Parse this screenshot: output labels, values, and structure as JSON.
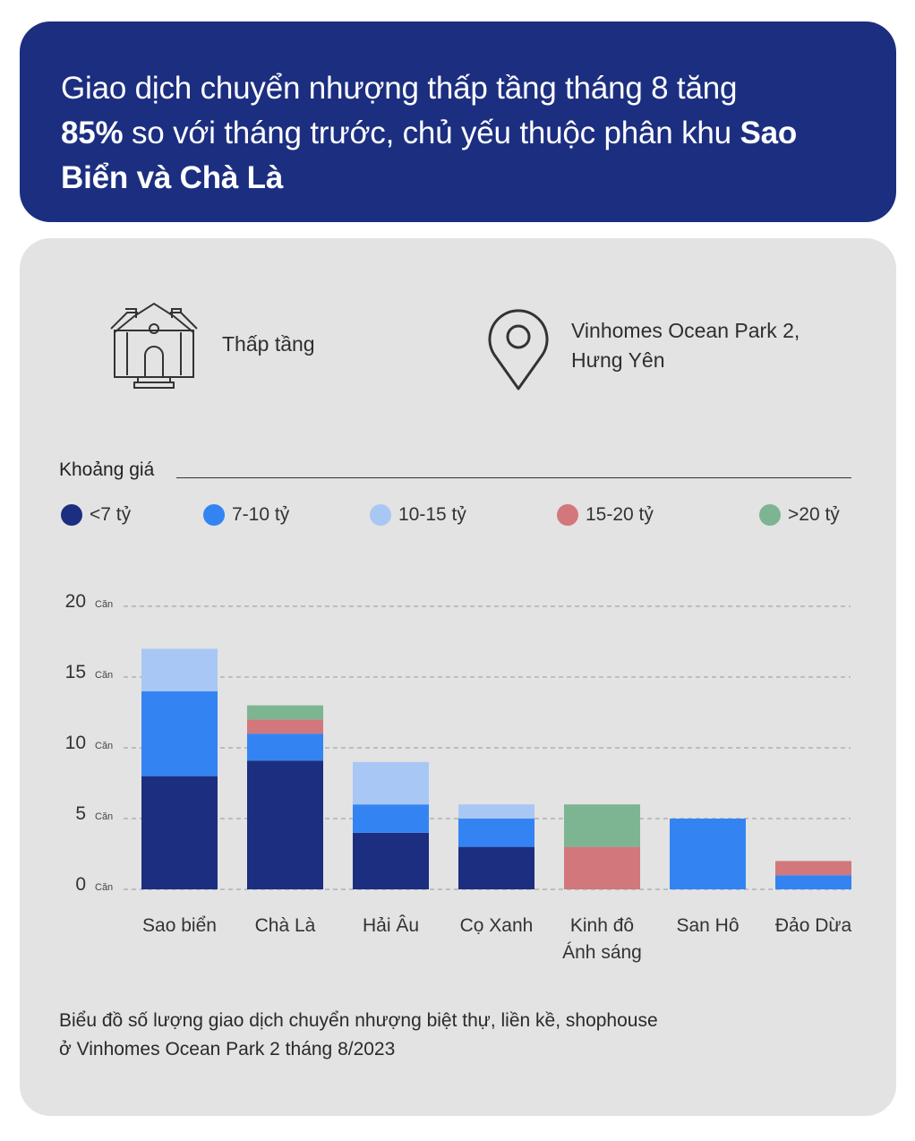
{
  "header": {
    "line1": "Giao dịch chuyển nhượng thấp tầng tháng 8 tăng",
    "bold1": "85%",
    "line2": " so với tháng trước, chủ yếu thuộc phân khu ",
    "bold2a": "Sao",
    "bold2b": "Biển và Chà Là"
  },
  "info": {
    "type_label": "Thấp tầng",
    "location_line1": "Vinhomes Ocean Park 2,",
    "location_line2": "Hưng Yên",
    "type_icon": "house-icon",
    "location_icon": "map-pin-icon"
  },
  "legend": {
    "title": "Khoảng giá",
    "items": [
      {
        "label": "<7 tỷ",
        "color": "#1c2e80"
      },
      {
        "label": "7-10 tỷ",
        "color": "#3384f2"
      },
      {
        "label": "10-15 tỷ",
        "color": "#a9c7f5"
      },
      {
        "label": "15-20 tỷ",
        "color": "#d2777b"
      },
      {
        "label": ">20 tỷ",
        "color": "#7db592"
      }
    ]
  },
  "chart_data": {
    "type": "bar",
    "stacked": true,
    "categories": [
      "Sao biển",
      "Chà Là",
      "Hải Âu",
      "Cọ Xanh",
      "Kinh đô\nÁnh sáng",
      "San Hô",
      "Đảo Dừa"
    ],
    "series": [
      {
        "name": "<7 tỷ",
        "color": "#1c2e80",
        "values": [
          8,
          9.1,
          4,
          3,
          0,
          0,
          0
        ]
      },
      {
        "name": "7-10 tỷ",
        "color": "#3384f2",
        "values": [
          6,
          1.9,
          2,
          2,
          0,
          5,
          1
        ]
      },
      {
        "name": "10-15 tỷ",
        "color": "#a9c7f5",
        "values": [
          3,
          0,
          3,
          1,
          0,
          0,
          0
        ]
      },
      {
        "name": "15-20 tỷ",
        "color": "#d2777b",
        "values": [
          0,
          1,
          0,
          0,
          3,
          0,
          1
        ]
      },
      {
        "name": ">20 tỷ",
        "color": "#7db592",
        "values": [
          0,
          1,
          0,
          0,
          3,
          0,
          0
        ]
      }
    ],
    "yticks": [
      0,
      5,
      10,
      15,
      20
    ],
    "yunit": "Căn",
    "ylim": [
      0,
      20
    ],
    "grid": true
  },
  "caption": {
    "line1": "Biểu đồ số lượng giao dịch chuyển nhượng biệt thự, liền kề, shophouse",
    "line2": "ở Vinhomes Ocean Park 2 tháng 8/2023"
  }
}
